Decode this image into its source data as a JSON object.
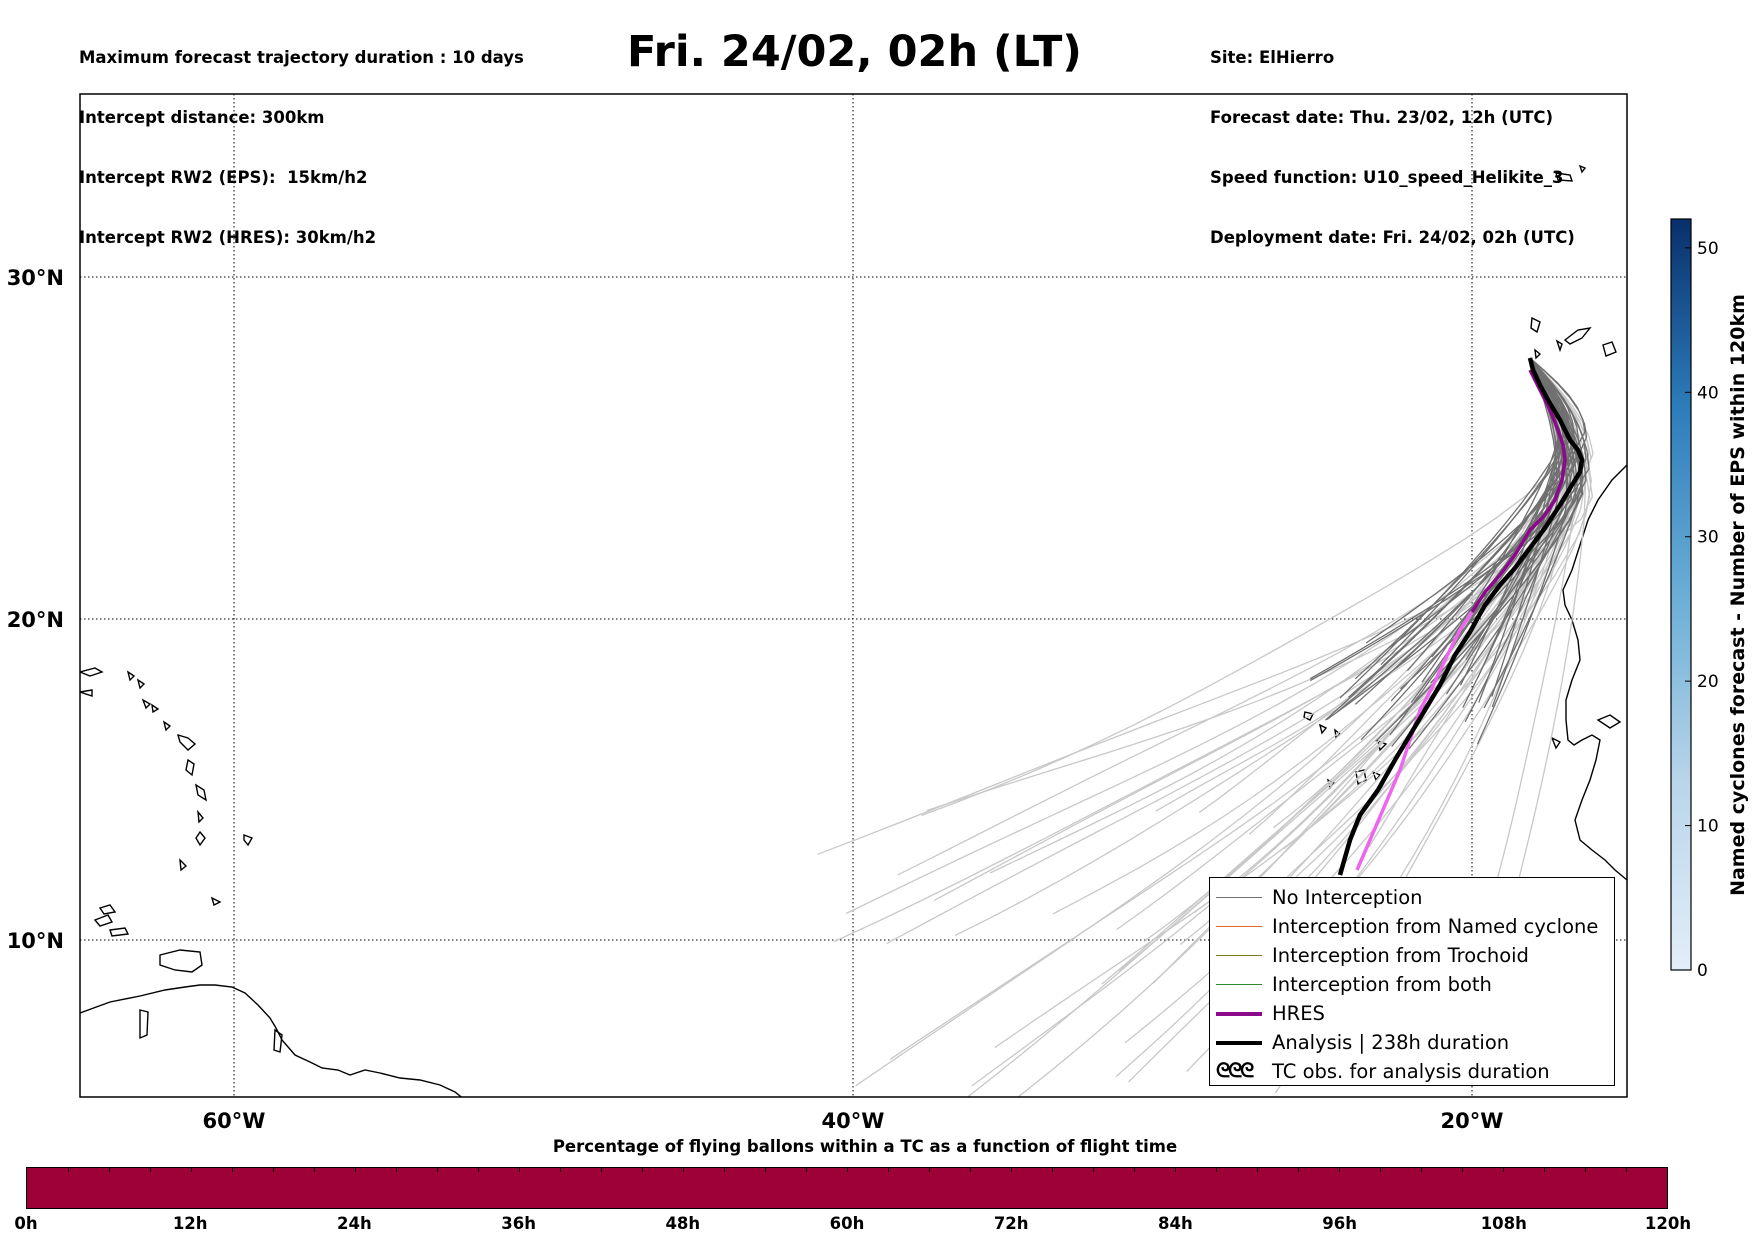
{
  "header": {
    "left_lines": [
      "Maximum forecast trajectory duration : 10 days",
      "Intercept distance: 300km",
      "Intercept RW2 (EPS):  15km/h2",
      "Intercept RW2 (HRES): 30km/h2"
    ],
    "title": "Fri. 24/02, 02h (LT)",
    "right_lines": [
      "Site: ElHierro",
      "Forecast date: Thu. 23/02, 12h (UTC)",
      "Speed function: U10_speed_Helikite_3",
      "Deployment date: Fri. 24/02, 02h (UTC)"
    ]
  },
  "map": {
    "lat_ticks": [
      "30°N",
      "20°N",
      "10°N"
    ],
    "lon_ticks": [
      "60°W",
      "40°W",
      "20°W"
    ],
    "colors": {
      "no_interception": "#707070",
      "named_cyclone": "#e8642a",
      "trochoid": "#7c7c20",
      "both": "#2c8a2c",
      "hres": "#8b0a8b",
      "hres_tail": "#ee66ee",
      "analysis": "#000000",
      "faint_tracks": "#c8c8c8"
    }
  },
  "legend": {
    "items": [
      {
        "label": "No Interception",
        "color": "#707070",
        "style": "thin"
      },
      {
        "label": "Interception from Named cyclone",
        "color": "#e8642a",
        "style": "thin"
      },
      {
        "label": "Interception from Trochoid",
        "color": "#7c7c20",
        "style": "thin"
      },
      {
        "label": "Interception from both",
        "color": "#2c8a2c",
        "style": "thin"
      },
      {
        "label": "HRES",
        "color": "#8b0a8b",
        "style": "thick"
      },
      {
        "label": "Analysis | 238h duration",
        "color": "#000000",
        "style": "thick"
      },
      {
        "label": "TC obs. for analysis duration",
        "color": "#000000",
        "style": "glyph",
        "glyph": "ᘓᘓᘓ"
      }
    ]
  },
  "colorbar": {
    "title": "Named cyclones forecast - Number of EPS within 120km",
    "ticks": [
      "0",
      "10",
      "20",
      "30",
      "40",
      "50"
    ],
    "range": [
      0,
      52
    ],
    "colors": {
      "low": "#e3eef9",
      "high": "#08306b"
    }
  },
  "timebar": {
    "title": "Percentage of flying ballons within a TC as a function of flight time",
    "ticks": [
      "0h",
      "12h",
      "24h",
      "36h",
      "48h",
      "60h",
      "72h",
      "84h",
      "96h",
      "108h",
      "120h"
    ],
    "fill_color": "#9e0038"
  }
}
